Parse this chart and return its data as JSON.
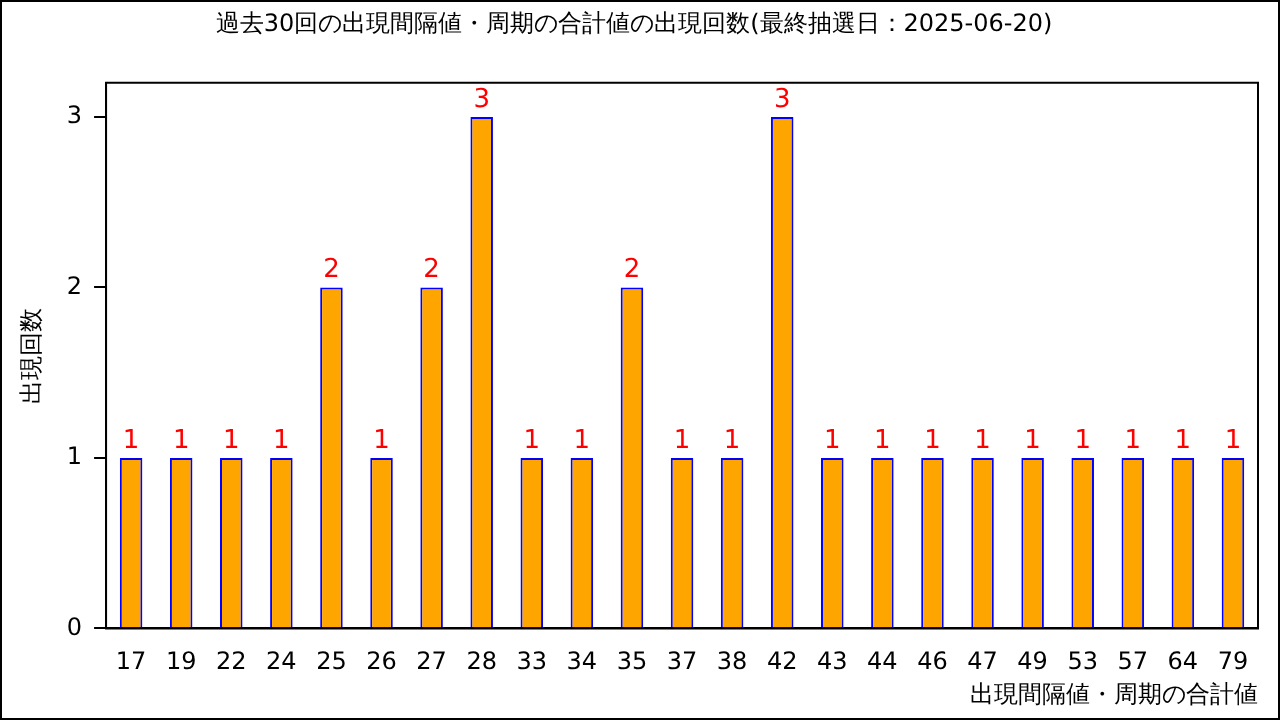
{
  "chart_data": {
    "type": "bar",
    "title": "過去30回の出現間隔値・周期の合計値の出現回数(最終抽選日：2025-06-20)",
    "xlabel": "出現間隔値・周期の合計値",
    "ylabel": "出現回数",
    "categories": [
      "17",
      "19",
      "22",
      "24",
      "25",
      "26",
      "27",
      "28",
      "33",
      "34",
      "35",
      "37",
      "38",
      "42",
      "43",
      "44",
      "46",
      "47",
      "49",
      "53",
      "57",
      "64",
      "79"
    ],
    "series": [
      {
        "color": "#ffa500",
        "values": [
          1,
          1,
          1,
          1,
          2,
          1,
          2,
          3,
          1,
          1,
          2,
          1,
          1,
          3,
          1,
          1,
          1,
          1,
          1,
          1,
          1,
          1,
          1
        ]
      }
    ],
    "ylim": [
      0,
      3.2
    ],
    "yticks": [
      0,
      1,
      2,
      3
    ],
    "grid": false,
    "legend": false,
    "data_labels": true
  }
}
